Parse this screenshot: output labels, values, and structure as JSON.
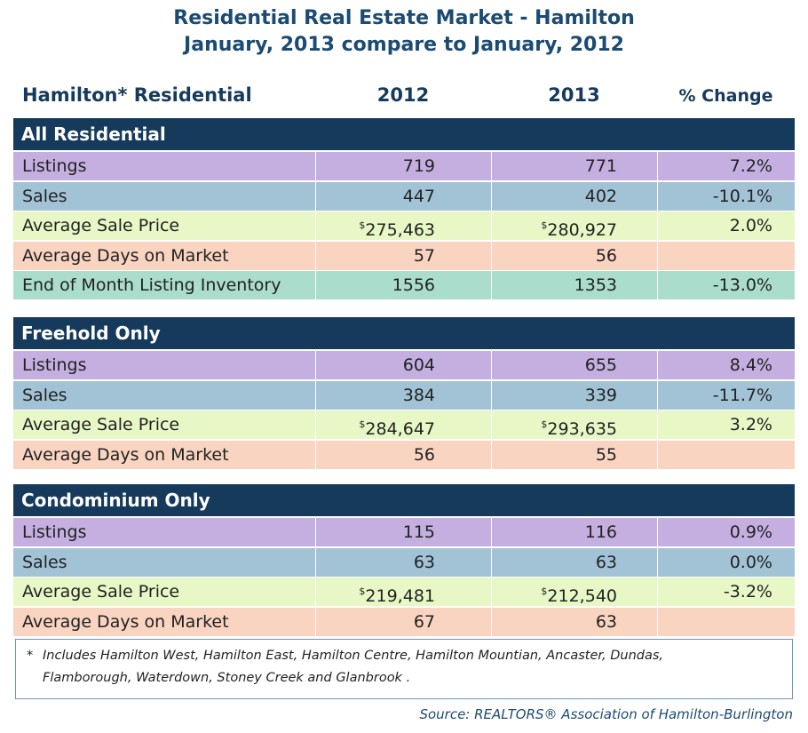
{
  "title": [
    "Residential Real Estate Market - Hamilton",
    "January, 2013 compare to January, 2012"
  ],
  "table": {
    "header": [
      "Hamilton* Residential",
      "2012",
      "2013",
      "% Change"
    ],
    "sections": [
      {
        "name": "All Residential",
        "rows": [
          {
            "color": "#c4afe0",
            "cells": [
              "Listings",
              "719",
              "771",
              "7.2%"
            ]
          },
          {
            "color": "#a2c2d6",
            "cells": [
              "Sales",
              "447",
              "402",
              "-10.1%"
            ]
          },
          {
            "color": "#e7f8c6",
            "cells": [
              "Average Sale Price",
              {
                "symbol": "$",
                "amount": "275,463"
              },
              {
                "symbol": "$",
                "amount": "280,927"
              },
              "2.0%"
            ]
          },
          {
            "color": "#f9d4c1",
            "cells": [
              "Average Days on Market",
              "57",
              "56",
              null
            ]
          },
          {
            "color": "#aaddcb",
            "cells": [
              "End of Month Listing Inventory",
              "1556",
              "1353",
              "-13.0%"
            ]
          }
        ]
      },
      {
        "name": "Freehold Only",
        "rows": [
          {
            "color": "#c4afe0",
            "cells": [
              "Listings",
              "604",
              "655",
              "8.4%"
            ]
          },
          {
            "color": "#a2c2d6",
            "cells": [
              "Sales",
              "384",
              "339",
              "-11.7%"
            ]
          },
          {
            "color": "#e7f8c6",
            "cells": [
              "Average Sale Price",
              {
                "symbol": "$",
                "amount": "284,647"
              },
              {
                "symbol": "$",
                "amount": "293,635"
              },
              "3.2%"
            ]
          },
          {
            "color": "#f9d4c1",
            "cells": [
              "Average Days on Market",
              "56",
              "55",
              null
            ]
          }
        ]
      },
      {
        "name": "Condominium Only",
        "rows": [
          {
            "color": "#c4afe0",
            "cells": [
              "Listings",
              "115",
              "116",
              "0.9%"
            ]
          },
          {
            "color": "#a2c2d6",
            "cells": [
              "Sales",
              "63",
              "63",
              "0.0%"
            ]
          },
          {
            "color": "#e7f8c6",
            "cells": [
              "Average Sale Price",
              {
                "symbol": "$",
                "amount": "219,481"
              },
              {
                "symbol": "$",
                "amount": "212,540"
              },
              "-3.2%"
            ]
          },
          {
            "color": "#f9d4c1",
            "cells": [
              "Average Days on Market",
              "67",
              "63",
              null
            ]
          }
        ]
      }
    ]
  },
  "footnote": {
    "marker": "*",
    "lines": [
      "Includes Hamilton West, Hamilton East, Hamilton Centre, Hamilton Mountian, Ancaster, Dundas,",
      "Flamborough, Waterdown, Stoney Creek and Glanbrook ."
    ]
  },
  "source": "Source:  REALTORS® Association of Hamilton-Burlington"
}
